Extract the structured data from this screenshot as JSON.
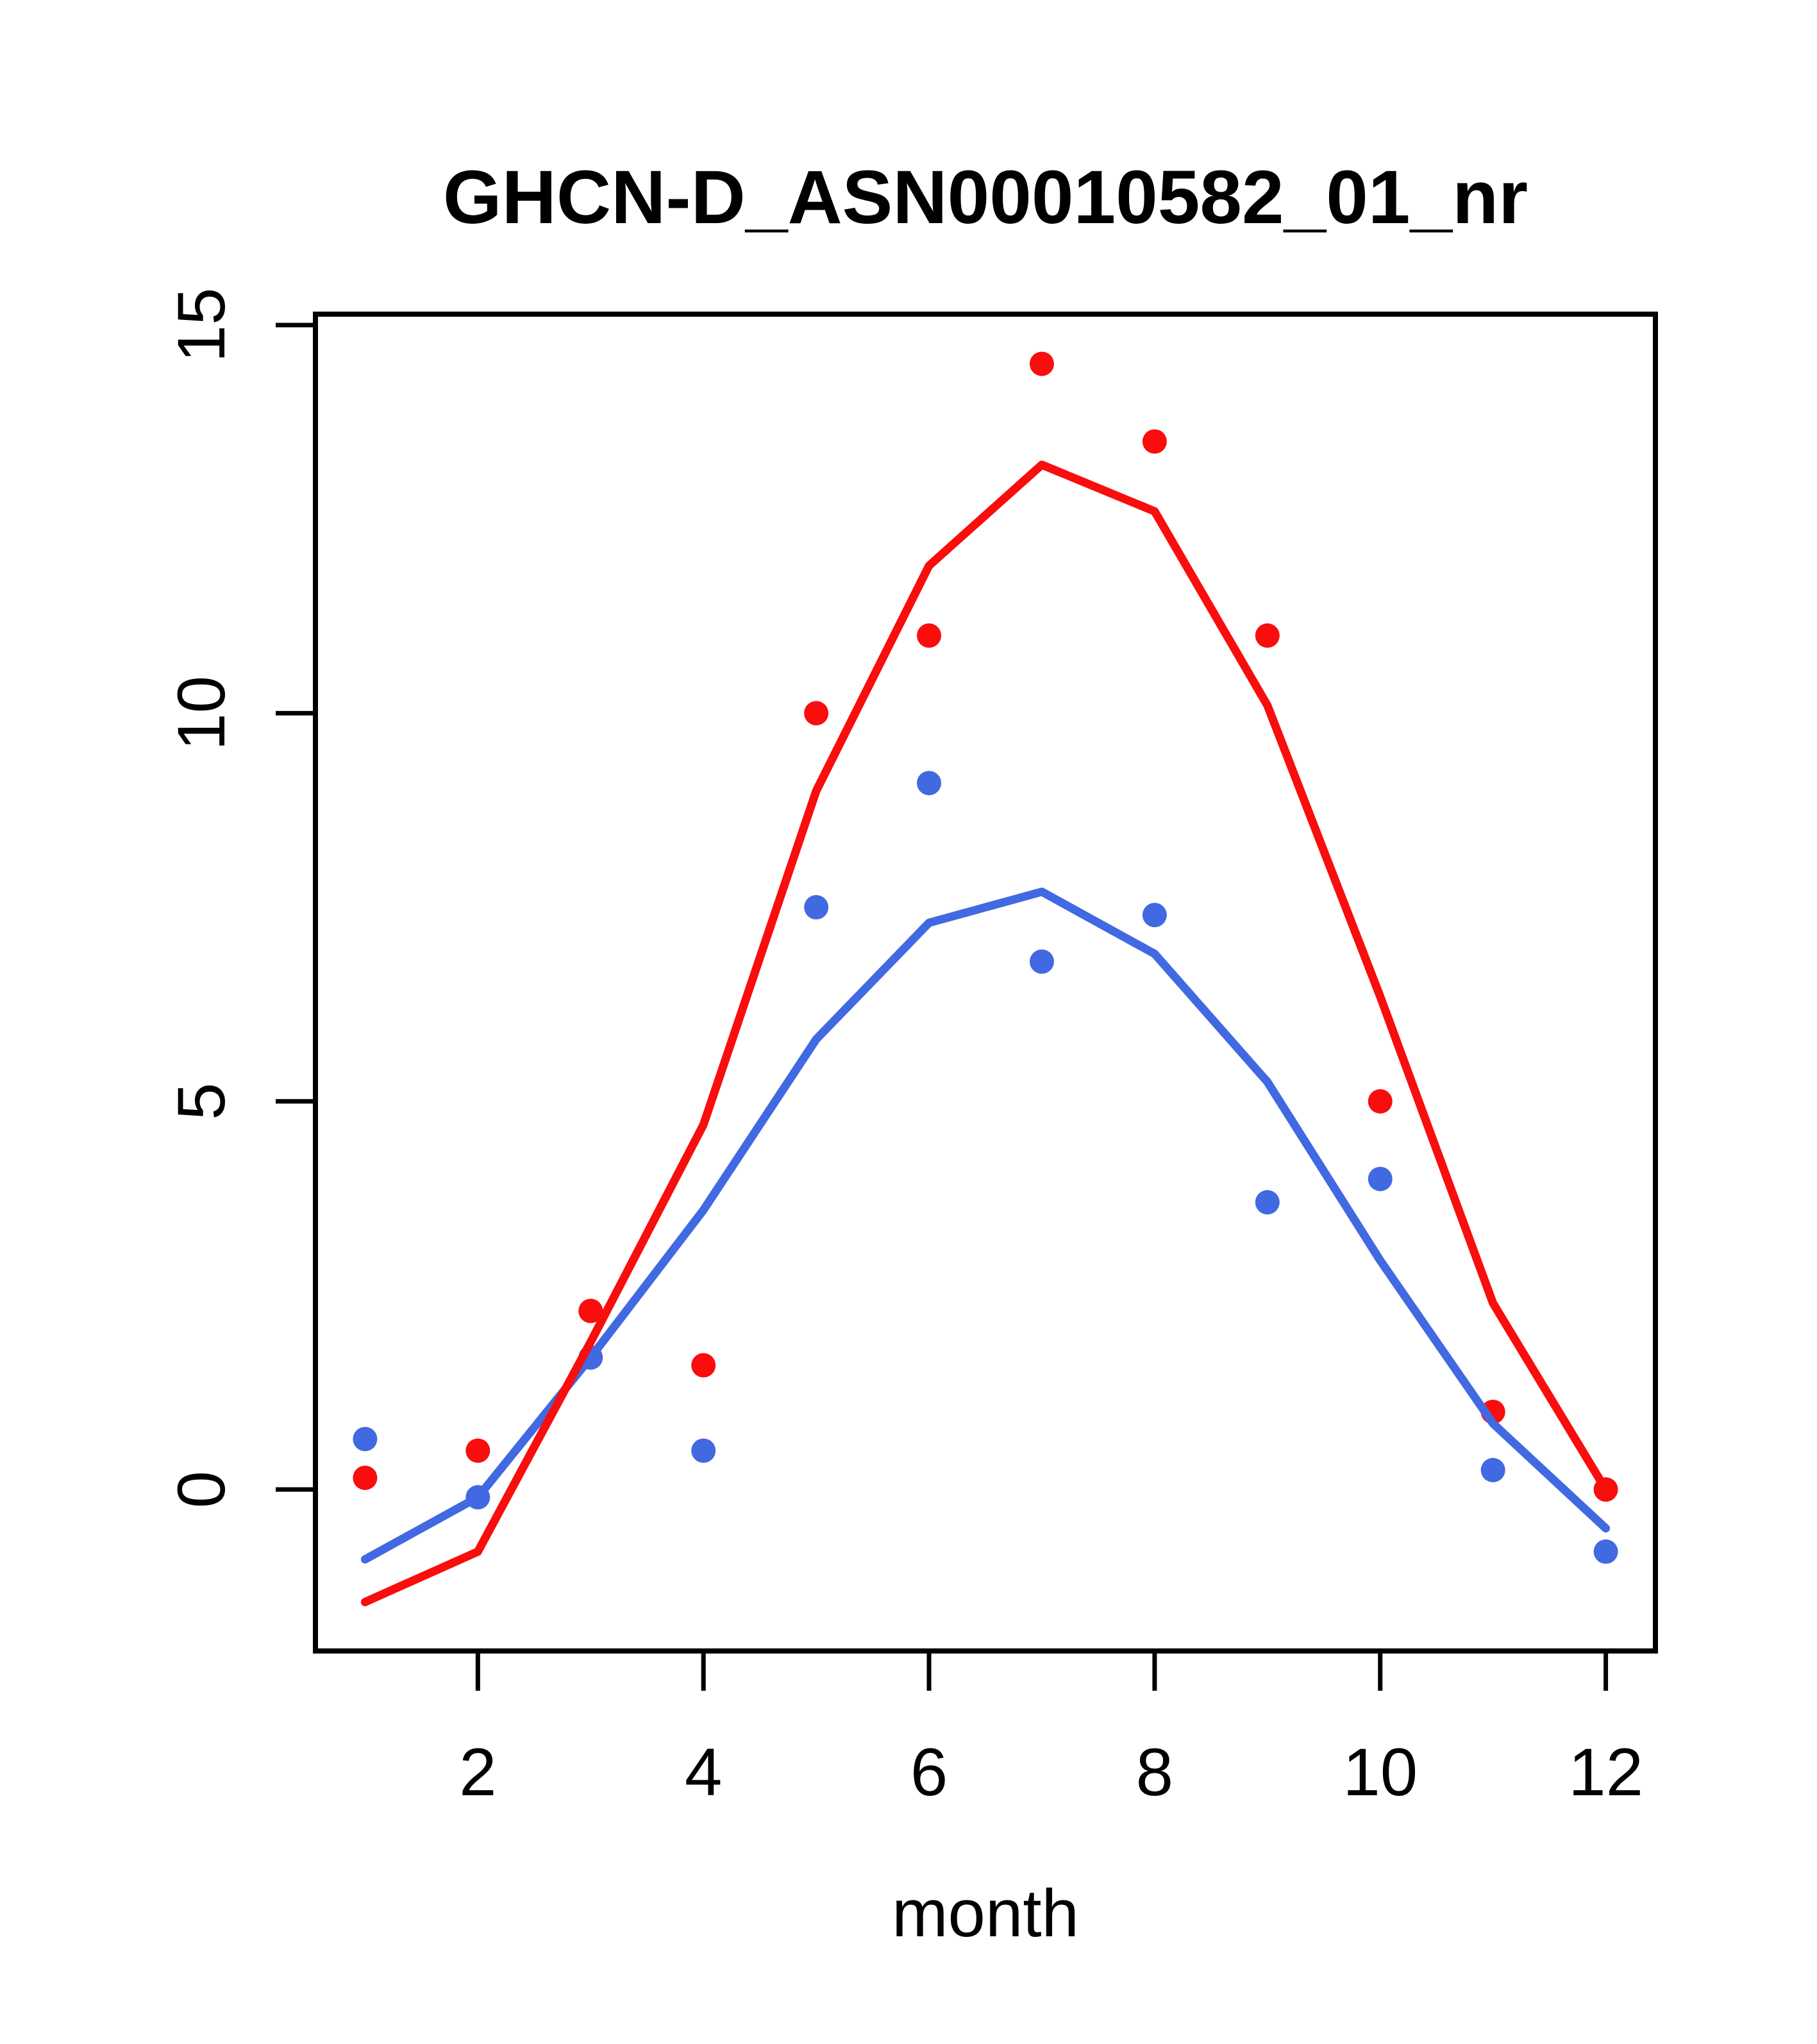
{
  "chart_data": {
    "type": "scatter",
    "title": "GHCN-D_ASN00010582_01_nr",
    "xlabel": "month",
    "ylabel": "",
    "x": [
      1,
      2,
      3,
      4,
      5,
      6,
      7,
      8,
      9,
      10,
      11,
      12
    ],
    "series": [
      {
        "name": "red-points",
        "type": "scatter",
        "color": "#f90d0d",
        "values": [
          0.15,
          0.5,
          2.3,
          1.6,
          10.0,
          11.0,
          14.5,
          13.5,
          11.0,
          5.0,
          1.0,
          0.0
        ]
      },
      {
        "name": "blue-points",
        "type": "scatter",
        "color": "#4169e1",
        "values": [
          0.65,
          -0.1,
          1.7,
          0.5,
          7.5,
          9.1,
          6.8,
          7.4,
          3.7,
          4.0,
          0.25,
          -0.8
        ]
      },
      {
        "name": "blue-trend-line",
        "type": "line",
        "color": "#4169e1",
        "values": [
          -0.9,
          -0.1,
          1.7,
          3.6,
          5.8,
          7.3,
          7.7,
          6.9,
          5.25,
          2.95,
          0.85,
          -0.5
        ]
      },
      {
        "name": "red-trend-line",
        "type": "line",
        "color": "#f90d0d",
        "values": [
          -1.45,
          -0.8,
          1.9,
          4.7,
          9.0,
          11.9,
          13.2,
          12.6,
          10.1,
          6.35,
          2.4,
          0.0
        ]
      }
    ],
    "x_ticks": [
      2,
      4,
      6,
      8,
      10,
      12
    ],
    "y_ticks": [
      0,
      5,
      10,
      15
    ],
    "xlim": [
      0.56,
      12.44
    ],
    "ylim": [
      -2.08,
      15.14
    ],
    "grid": "off",
    "legend": "none"
  }
}
